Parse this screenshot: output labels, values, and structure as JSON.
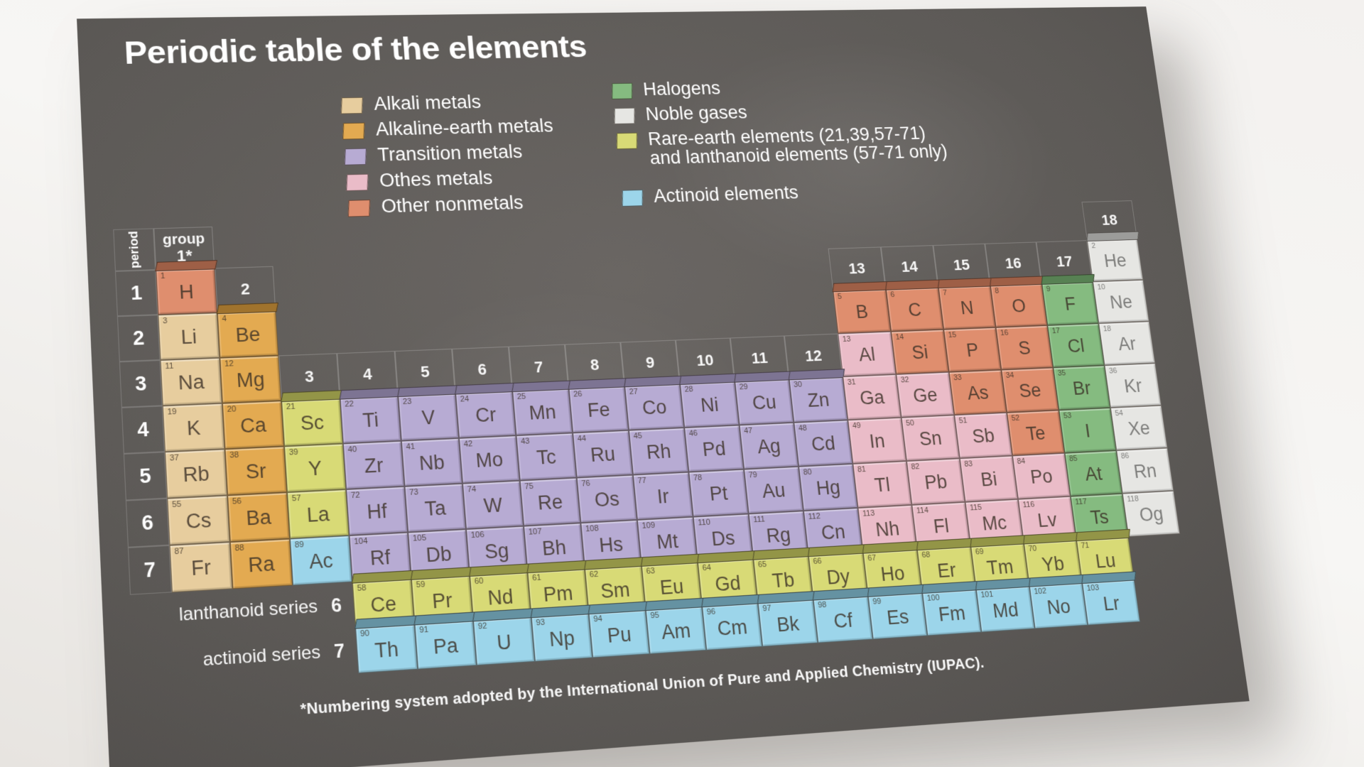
{
  "title": "Periodic table of the elements",
  "footnote": "*Numbering system adopted by the International Union of Pure and Applied Chemistry (IUPAC).",
  "colors": {
    "board": "#5d5a57",
    "background": "#f3f1ef",
    "cell_ink": "#3a2f26",
    "label_ink": "#ffffff"
  },
  "legend": {
    "left": [
      {
        "key": "alkali",
        "label": "Alkali metals",
        "color": "#e7cd9e"
      },
      {
        "key": "alkaline",
        "label": "Alkaline-earth metals",
        "color": "#e3aa51"
      },
      {
        "key": "transition",
        "label": "Transition metals",
        "color": "#b7abd3"
      },
      {
        "key": "othermetal",
        "label": "Othes metals",
        "color": "#eabcc8"
      },
      {
        "key": "nonmetal",
        "label": "Other nonmetals",
        "color": "#df8e6e"
      }
    ],
    "right": [
      {
        "key": "halogen",
        "label": "Halogens",
        "color": "#85bb80"
      },
      {
        "key": "noble",
        "label": "Noble gases",
        "color": "#e6e6e3"
      },
      {
        "key": "rare",
        "label": "Rare-earth elements (21,39,57-71)\nand lanthanoid elements (57-71 only)",
        "color": "#d8da76"
      },
      {
        "key": "actinoid",
        "label": "Actinoid elements",
        "color": "#9cd5ea"
      }
    ]
  },
  "axis": {
    "period_word": "period",
    "group_word": "group",
    "group_headers": [
      "1*",
      "2",
      "3",
      "4",
      "5",
      "6",
      "7",
      "8",
      "9",
      "10",
      "11",
      "12",
      "13",
      "14",
      "15",
      "16",
      "17",
      "18"
    ],
    "period_labels": [
      "1",
      "2",
      "3",
      "4",
      "5",
      "6",
      "7"
    ]
  },
  "series": {
    "lanthanoid_label": "lanthanoid series",
    "lanthanoid_period": "6",
    "actinoid_label": "actinoid series",
    "actinoid_period": "7"
  },
  "elements": [
    {
      "n": 1,
      "s": "H",
      "p": 1,
      "g": 1,
      "c": "nonmetal"
    },
    {
      "n": 2,
      "s": "He",
      "p": 1,
      "g": 18,
      "c": "noble"
    },
    {
      "n": 3,
      "s": "Li",
      "p": 2,
      "g": 1,
      "c": "alkali"
    },
    {
      "n": 4,
      "s": "Be",
      "p": 2,
      "g": 2,
      "c": "alkaline"
    },
    {
      "n": 5,
      "s": "B",
      "p": 2,
      "g": 13,
      "c": "nonmetal"
    },
    {
      "n": 6,
      "s": "C",
      "p": 2,
      "g": 14,
      "c": "nonmetal"
    },
    {
      "n": 7,
      "s": "N",
      "p": 2,
      "g": 15,
      "c": "nonmetal"
    },
    {
      "n": 8,
      "s": "O",
      "p": 2,
      "g": 16,
      "c": "nonmetal"
    },
    {
      "n": 9,
      "s": "F",
      "p": 2,
      "g": 17,
      "c": "halogen"
    },
    {
      "n": 10,
      "s": "Ne",
      "p": 2,
      "g": 18,
      "c": "noble"
    },
    {
      "n": 11,
      "s": "Na",
      "p": 3,
      "g": 1,
      "c": "alkali"
    },
    {
      "n": 12,
      "s": "Mg",
      "p": 3,
      "g": 2,
      "c": "alkaline"
    },
    {
      "n": 13,
      "s": "Al",
      "p": 3,
      "g": 13,
      "c": "othermetal"
    },
    {
      "n": 14,
      "s": "Si",
      "p": 3,
      "g": 14,
      "c": "nonmetal"
    },
    {
      "n": 15,
      "s": "P",
      "p": 3,
      "g": 15,
      "c": "nonmetal"
    },
    {
      "n": 16,
      "s": "S",
      "p": 3,
      "g": 16,
      "c": "nonmetal"
    },
    {
      "n": 17,
      "s": "Cl",
      "p": 3,
      "g": 17,
      "c": "halogen"
    },
    {
      "n": 18,
      "s": "Ar",
      "p": 3,
      "g": 18,
      "c": "noble"
    },
    {
      "n": 19,
      "s": "K",
      "p": 4,
      "g": 1,
      "c": "alkali"
    },
    {
      "n": 20,
      "s": "Ca",
      "p": 4,
      "g": 2,
      "c": "alkaline"
    },
    {
      "n": 21,
      "s": "Sc",
      "p": 4,
      "g": 3,
      "c": "rare"
    },
    {
      "n": 22,
      "s": "Ti",
      "p": 4,
      "g": 4,
      "c": "transition"
    },
    {
      "n": 23,
      "s": "V",
      "p": 4,
      "g": 5,
      "c": "transition"
    },
    {
      "n": 24,
      "s": "Cr",
      "p": 4,
      "g": 6,
      "c": "transition"
    },
    {
      "n": 25,
      "s": "Mn",
      "p": 4,
      "g": 7,
      "c": "transition"
    },
    {
      "n": 26,
      "s": "Fe",
      "p": 4,
      "g": 8,
      "c": "transition"
    },
    {
      "n": 27,
      "s": "Co",
      "p": 4,
      "g": 9,
      "c": "transition"
    },
    {
      "n": 28,
      "s": "Ni",
      "p": 4,
      "g": 10,
      "c": "transition"
    },
    {
      "n": 29,
      "s": "Cu",
      "p": 4,
      "g": 11,
      "c": "transition"
    },
    {
      "n": 30,
      "s": "Zn",
      "p": 4,
      "g": 12,
      "c": "transition"
    },
    {
      "n": 31,
      "s": "Ga",
      "p": 4,
      "g": 13,
      "c": "othermetal"
    },
    {
      "n": 32,
      "s": "Ge",
      "p": 4,
      "g": 14,
      "c": "othermetal"
    },
    {
      "n": 33,
      "s": "As",
      "p": 4,
      "g": 15,
      "c": "nonmetal"
    },
    {
      "n": 34,
      "s": "Se",
      "p": 4,
      "g": 16,
      "c": "nonmetal"
    },
    {
      "n": 35,
      "s": "Br",
      "p": 4,
      "g": 17,
      "c": "halogen"
    },
    {
      "n": 36,
      "s": "Kr",
      "p": 4,
      "g": 18,
      "c": "noble"
    },
    {
      "n": 37,
      "s": "Rb",
      "p": 5,
      "g": 1,
      "c": "alkali"
    },
    {
      "n": 38,
      "s": "Sr",
      "p": 5,
      "g": 2,
      "c": "alkaline"
    },
    {
      "n": 39,
      "s": "Y",
      "p": 5,
      "g": 3,
      "c": "rare"
    },
    {
      "n": 40,
      "s": "Zr",
      "p": 5,
      "g": 4,
      "c": "transition"
    },
    {
      "n": 41,
      "s": "Nb",
      "p": 5,
      "g": 5,
      "c": "transition"
    },
    {
      "n": 42,
      "s": "Mo",
      "p": 5,
      "g": 6,
      "c": "transition"
    },
    {
      "n": 43,
      "s": "Tc",
      "p": 5,
      "g": 7,
      "c": "transition"
    },
    {
      "n": 44,
      "s": "Ru",
      "p": 5,
      "g": 8,
      "c": "transition"
    },
    {
      "n": 45,
      "s": "Rh",
      "p": 5,
      "g": 9,
      "c": "transition"
    },
    {
      "n": 46,
      "s": "Pd",
      "p": 5,
      "g": 10,
      "c": "transition"
    },
    {
      "n": 47,
      "s": "Ag",
      "p": 5,
      "g": 11,
      "c": "transition"
    },
    {
      "n": 48,
      "s": "Cd",
      "p": 5,
      "g": 12,
      "c": "transition"
    },
    {
      "n": 49,
      "s": "In",
      "p": 5,
      "g": 13,
      "c": "othermetal"
    },
    {
      "n": 50,
      "s": "Sn",
      "p": 5,
      "g": 14,
      "c": "othermetal"
    },
    {
      "n": 51,
      "s": "Sb",
      "p": 5,
      "g": 15,
      "c": "othermetal"
    },
    {
      "n": 52,
      "s": "Te",
      "p": 5,
      "g": 16,
      "c": "nonmetal"
    },
    {
      "n": 53,
      "s": "I",
      "p": 5,
      "g": 17,
      "c": "halogen"
    },
    {
      "n": 54,
      "s": "Xe",
      "p": 5,
      "g": 18,
      "c": "noble"
    },
    {
      "n": 55,
      "s": "Cs",
      "p": 6,
      "g": 1,
      "c": "alkali"
    },
    {
      "n": 56,
      "s": "Ba",
      "p": 6,
      "g": 2,
      "c": "alkaline"
    },
    {
      "n": 57,
      "s": "La",
      "p": 6,
      "g": 3,
      "c": "rare"
    },
    {
      "n": 72,
      "s": "Hf",
      "p": 6,
      "g": 4,
      "c": "transition"
    },
    {
      "n": 73,
      "s": "Ta",
      "p": 6,
      "g": 5,
      "c": "transition"
    },
    {
      "n": 74,
      "s": "W",
      "p": 6,
      "g": 6,
      "c": "transition"
    },
    {
      "n": 75,
      "s": "Re",
      "p": 6,
      "g": 7,
      "c": "transition"
    },
    {
      "n": 76,
      "s": "Os",
      "p": 6,
      "g": 8,
      "c": "transition"
    },
    {
      "n": 77,
      "s": "Ir",
      "p": 6,
      "g": 9,
      "c": "transition"
    },
    {
      "n": 78,
      "s": "Pt",
      "p": 6,
      "g": 10,
      "c": "transition"
    },
    {
      "n": 79,
      "s": "Au",
      "p": 6,
      "g": 11,
      "c": "transition"
    },
    {
      "n": 80,
      "s": "Hg",
      "p": 6,
      "g": 12,
      "c": "transition"
    },
    {
      "n": 81,
      "s": "Tl",
      "p": 6,
      "g": 13,
      "c": "othermetal"
    },
    {
      "n": 82,
      "s": "Pb",
      "p": 6,
      "g": 14,
      "c": "othermetal"
    },
    {
      "n": 83,
      "s": "Bi",
      "p": 6,
      "g": 15,
      "c": "othermetal"
    },
    {
      "n": 84,
      "s": "Po",
      "p": 6,
      "g": 16,
      "c": "othermetal"
    },
    {
      "n": 85,
      "s": "At",
      "p": 6,
      "g": 17,
      "c": "halogen"
    },
    {
      "n": 86,
      "s": "Rn",
      "p": 6,
      "g": 18,
      "c": "noble"
    },
    {
      "n": 87,
      "s": "Fr",
      "p": 7,
      "g": 1,
      "c": "alkali"
    },
    {
      "n": 88,
      "s": "Ra",
      "p": 7,
      "g": 2,
      "c": "alkaline"
    },
    {
      "n": 89,
      "s": "Ac",
      "p": 7,
      "g": 3,
      "c": "actinoid"
    },
    {
      "n": 104,
      "s": "Rf",
      "p": 7,
      "g": 4,
      "c": "transition"
    },
    {
      "n": 105,
      "s": "Db",
      "p": 7,
      "g": 5,
      "c": "transition"
    },
    {
      "n": 106,
      "s": "Sg",
      "p": 7,
      "g": 6,
      "c": "transition"
    },
    {
      "n": 107,
      "s": "Bh",
      "p": 7,
      "g": 7,
      "c": "transition"
    },
    {
      "n": 108,
      "s": "Hs",
      "p": 7,
      "g": 8,
      "c": "transition"
    },
    {
      "n": 109,
      "s": "Mt",
      "p": 7,
      "g": 9,
      "c": "transition"
    },
    {
      "n": 110,
      "s": "Ds",
      "p": 7,
      "g": 10,
      "c": "transition"
    },
    {
      "n": 111,
      "s": "Rg",
      "p": 7,
      "g": 11,
      "c": "transition"
    },
    {
      "n": 112,
      "s": "Cn",
      "p": 7,
      "g": 12,
      "c": "transition"
    },
    {
      "n": 113,
      "s": "Nh",
      "p": 7,
      "g": 13,
      "c": "othermetal"
    },
    {
      "n": 114,
      "s": "Fl",
      "p": 7,
      "g": 14,
      "c": "othermetal"
    },
    {
      "n": 115,
      "s": "Mc",
      "p": 7,
      "g": 15,
      "c": "othermetal"
    },
    {
      "n": 116,
      "s": "Lv",
      "p": 7,
      "g": 16,
      "c": "othermetal"
    },
    {
      "n": 117,
      "s": "Ts",
      "p": 7,
      "g": 17,
      "c": "halogen"
    },
    {
      "n": 118,
      "s": "Og",
      "p": 7,
      "g": 18,
      "c": "noble"
    }
  ],
  "lanthanoids": [
    {
      "n": 58,
      "s": "Ce"
    },
    {
      "n": 59,
      "s": "Pr"
    },
    {
      "n": 60,
      "s": "Nd"
    },
    {
      "n": 61,
      "s": "Pm"
    },
    {
      "n": 62,
      "s": "Sm"
    },
    {
      "n": 63,
      "s": "Eu"
    },
    {
      "n": 64,
      "s": "Gd"
    },
    {
      "n": 65,
      "s": "Tb"
    },
    {
      "n": 66,
      "s": "Dy"
    },
    {
      "n": 67,
      "s": "Ho"
    },
    {
      "n": 68,
      "s": "Er"
    },
    {
      "n": 69,
      "s": "Tm"
    },
    {
      "n": 70,
      "s": "Yb"
    },
    {
      "n": 71,
      "s": "Lu"
    }
  ],
  "actinoids": [
    {
      "n": 90,
      "s": "Th"
    },
    {
      "n": 91,
      "s": "Pa"
    },
    {
      "n": 92,
      "s": "U"
    },
    {
      "n": 93,
      "s": "Np"
    },
    {
      "n": 94,
      "s": "Pu"
    },
    {
      "n": 95,
      "s": "Am"
    },
    {
      "n": 96,
      "s": "Cm"
    },
    {
      "n": 97,
      "s": "Bk"
    },
    {
      "n": 98,
      "s": "Cf"
    },
    {
      "n": 99,
      "s": "Es"
    },
    {
      "n": 100,
      "s": "Fm"
    },
    {
      "n": 101,
      "s": "Md"
    },
    {
      "n": 102,
      "s": "No"
    },
    {
      "n": 103,
      "s": "Lr"
    }
  ]
}
